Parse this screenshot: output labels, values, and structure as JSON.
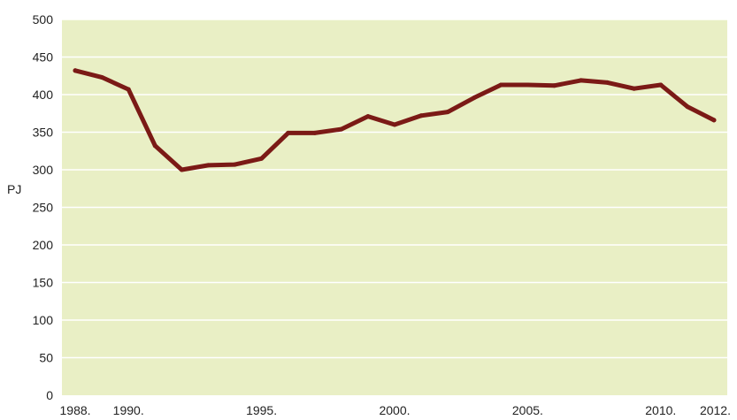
{
  "chart_data": {
    "type": "line",
    "title": "",
    "xlabel": "",
    "ylabel": "PJ",
    "ylim": [
      0,
      500
    ],
    "yticks": [
      "0",
      "50",
      "100",
      "150",
      "200",
      "250",
      "300",
      "350",
      "400",
      "450",
      "500"
    ],
    "xticks": [
      {
        "year": 1988,
        "label": "1988."
      },
      {
        "year": 1990,
        "label": "1990."
      },
      {
        "year": 1995,
        "label": "1995."
      },
      {
        "year": 2000,
        "label": "2000."
      },
      {
        "year": 2005,
        "label": "2005."
      },
      {
        "year": 2010,
        "label": "2010."
      },
      {
        "year": 2012,
        "label": "2012."
      }
    ],
    "x": [
      1988,
      1989,
      1990,
      1991,
      1992,
      1993,
      1994,
      1995,
      1996,
      1997,
      1998,
      1999,
      2000,
      2001,
      2002,
      2003,
      2004,
      2005,
      2006,
      2007,
      2008,
      2009,
      2010,
      2011,
      2012
    ],
    "series": [
      {
        "values": [
          432,
          423,
          407,
          332,
          300,
          306,
          307,
          315,
          349,
          349,
          354,
          371,
          360,
          372,
          377,
          396,
          413,
          413,
          412,
          419,
          416,
          408,
          413,
          384,
          366
        ]
      }
    ],
    "grid": true,
    "colors": {
      "plot_background": "#e9efc5",
      "gridline": "#ffffff",
      "line": "#7b1a16"
    }
  }
}
